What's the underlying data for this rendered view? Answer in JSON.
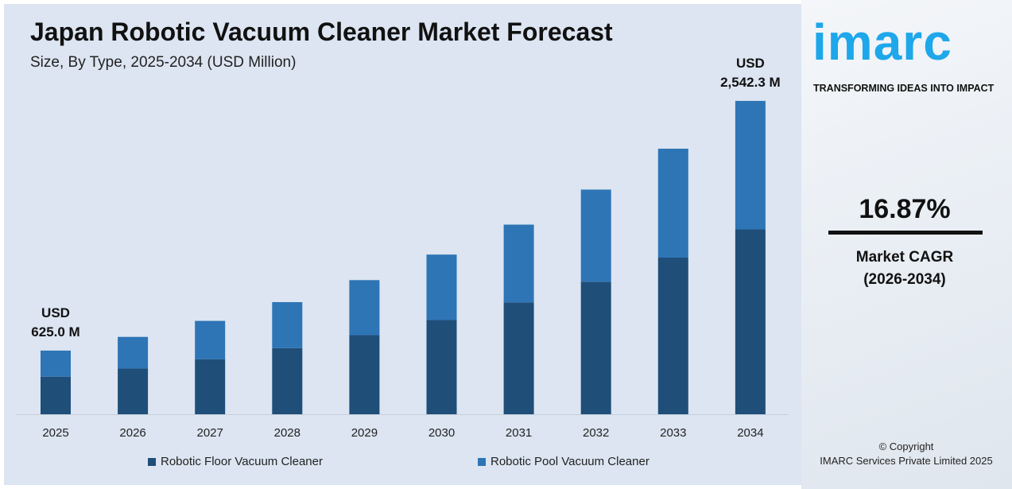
{
  "chart_data": {
    "type": "bar",
    "stacked": true,
    "title": "Japan Robotic Vacuum Cleaner Market Forecast",
    "subtitle": "Size, By Type, 2025-2034 (USD Million)",
    "categories": [
      "2025",
      "2026",
      "2027",
      "2028",
      "2029",
      "2030",
      "2031",
      "2032",
      "2033",
      "2034"
    ],
    "series": [
      {
        "name": "Robotic Floor Vacuum Cleaner",
        "color": "#1f4e79",
        "values": [
          369,
          431,
          503,
          588,
          688,
          804,
          939,
          1098,
          1283,
          1500
        ]
      },
      {
        "name": "Robotic Pool Vacuum Cleaner",
        "color": "#2e75b6",
        "values": [
          256,
          299,
          350,
          409,
          478,
          558,
          653,
          763,
          892,
          1042
        ]
      }
    ],
    "annotations": {
      "first": {
        "line1": "USD",
        "line2": "625.0 M"
      },
      "last": {
        "line1": "USD",
        "line2": "2,542.3 M"
      }
    },
    "legend_position": "bottom",
    "grid": false
  },
  "brand": {
    "logo": "imarc",
    "tagline": "TRANSFORMING IDEAS INTO IMPACT",
    "color": "#1ea7ea"
  },
  "cagr": {
    "value": "16.87%",
    "label": "Market CAGR",
    "period": "(2026-2034)"
  },
  "footer": {
    "copyright": "© Copyright",
    "company": "IMARC Services Private Limited 2025"
  }
}
